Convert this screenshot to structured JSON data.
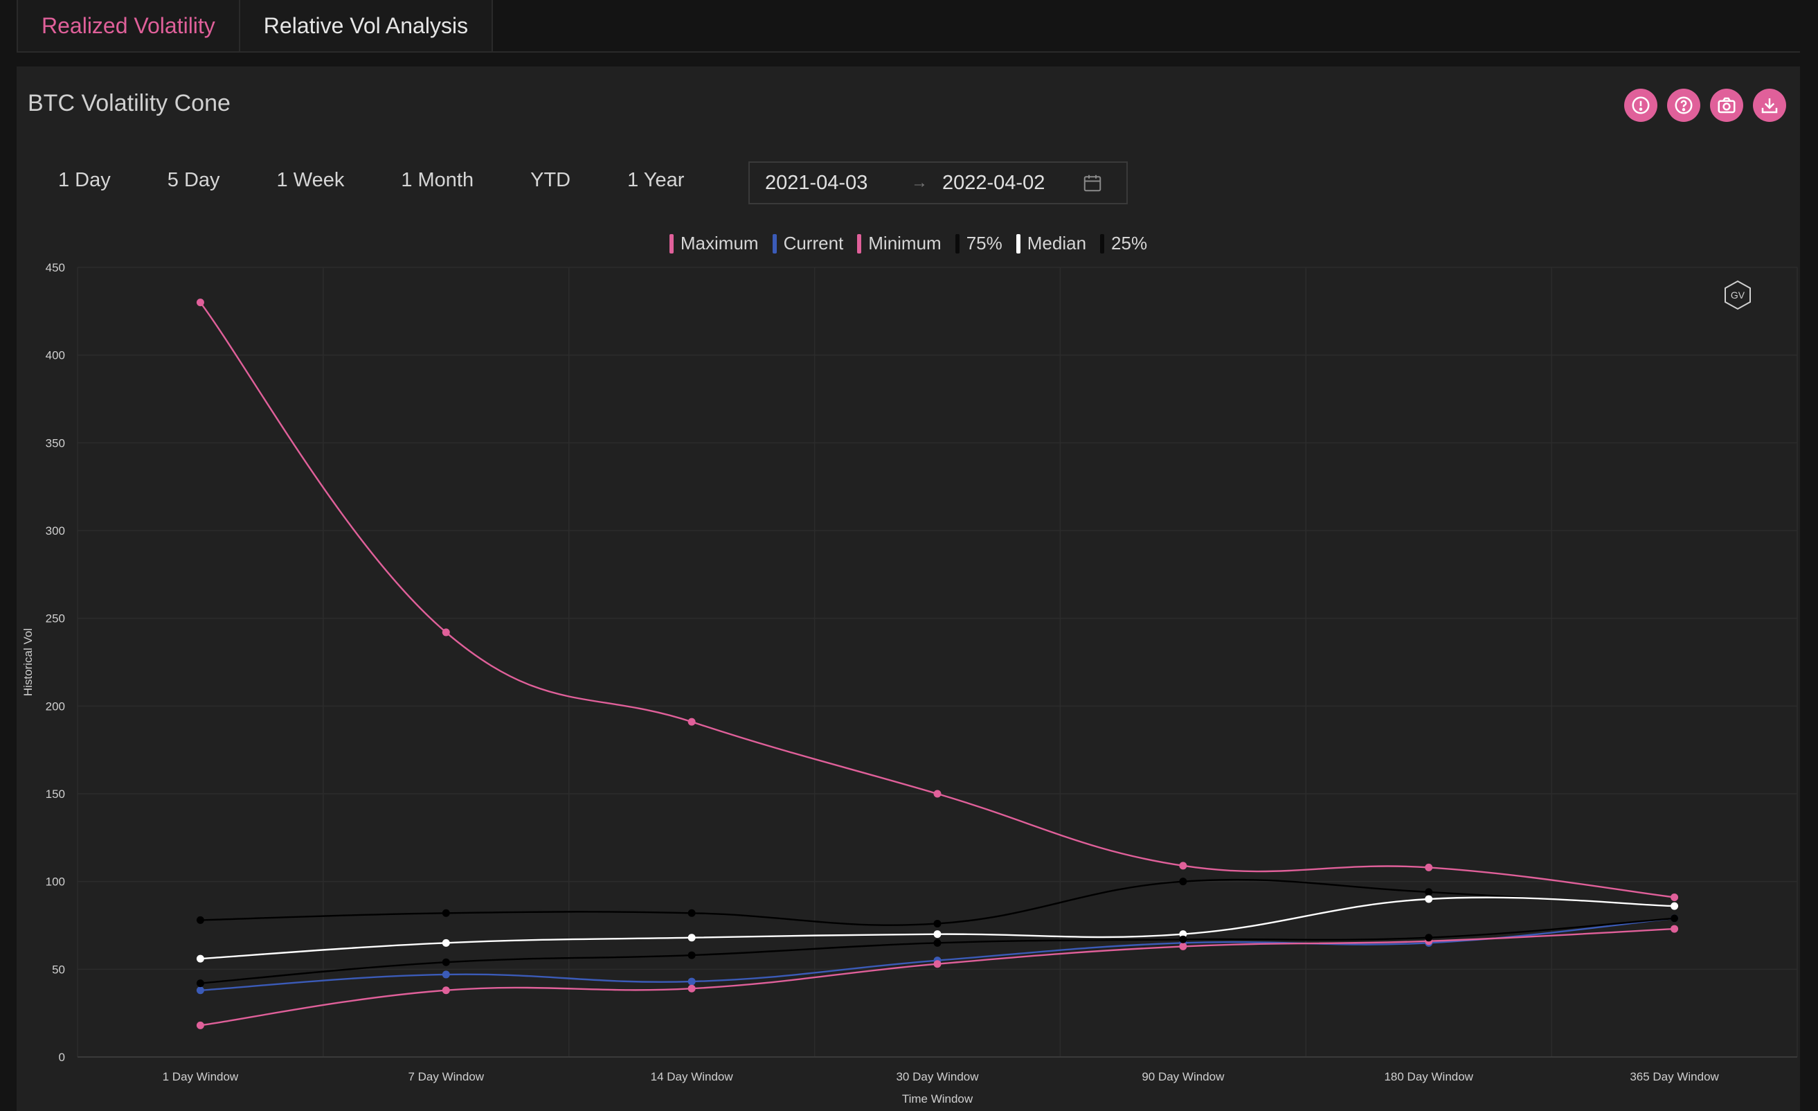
{
  "tabs": [
    {
      "label": "Realized Volatility",
      "active": true
    },
    {
      "label": "Relative Vol Analysis",
      "active": false
    }
  ],
  "card": {
    "title": "BTC Volatility Cone"
  },
  "icons": [
    "alert-icon",
    "help-icon",
    "camera-icon",
    "download-icon"
  ],
  "periods": [
    "1 Day",
    "5 Day",
    "1 Week",
    "1 Month",
    "YTD",
    "1 Year"
  ],
  "date_range": {
    "start": "2021-04-03",
    "separator": "→",
    "end": "2022-04-02"
  },
  "watermark": {
    "text": "GV"
  },
  "colors": {
    "accent": "#e0609a",
    "maximum": "#e0609a",
    "current": "#3b5bb8",
    "minimum": "#e0609a",
    "p75": "#000000",
    "median": "#ffffff",
    "p25": "#000000"
  },
  "chart_data": {
    "type": "line",
    "xlabel": "Time Window",
    "ylabel": "Historical Vol",
    "ylim": [
      0,
      450
    ],
    "yticks": [
      0,
      50,
      100,
      150,
      200,
      250,
      300,
      350,
      400,
      450
    ],
    "categories": [
      "1 Day Window",
      "7 Day Window",
      "14 Day Window",
      "30 Day Window",
      "90 Day Window",
      "180 Day Window",
      "365 Day Window"
    ],
    "grid": true,
    "legend_position": "top-center",
    "series": [
      {
        "name": "Maximum",
        "color": "#e0609a",
        "values": [
          430,
          242,
          191,
          150,
          109,
          108,
          91
        ]
      },
      {
        "name": "Current",
        "color": "#3b5bb8",
        "values": [
          38,
          47,
          43,
          55,
          65,
          65,
          79
        ]
      },
      {
        "name": "Minimum",
        "color": "#e0609a",
        "values": [
          18,
          38,
          39,
          53,
          63,
          66,
          73
        ]
      },
      {
        "name": "75%",
        "color": "#000000",
        "values": [
          78,
          82,
          82,
          76,
          100,
          94,
          86
        ]
      },
      {
        "name": "Median",
        "color": "#ffffff",
        "values": [
          56,
          65,
          68,
          70,
          70,
          90,
          86
        ]
      },
      {
        "name": "25%",
        "color": "#000000",
        "values": [
          42,
          54,
          58,
          65,
          67,
          68,
          79
        ]
      }
    ]
  }
}
